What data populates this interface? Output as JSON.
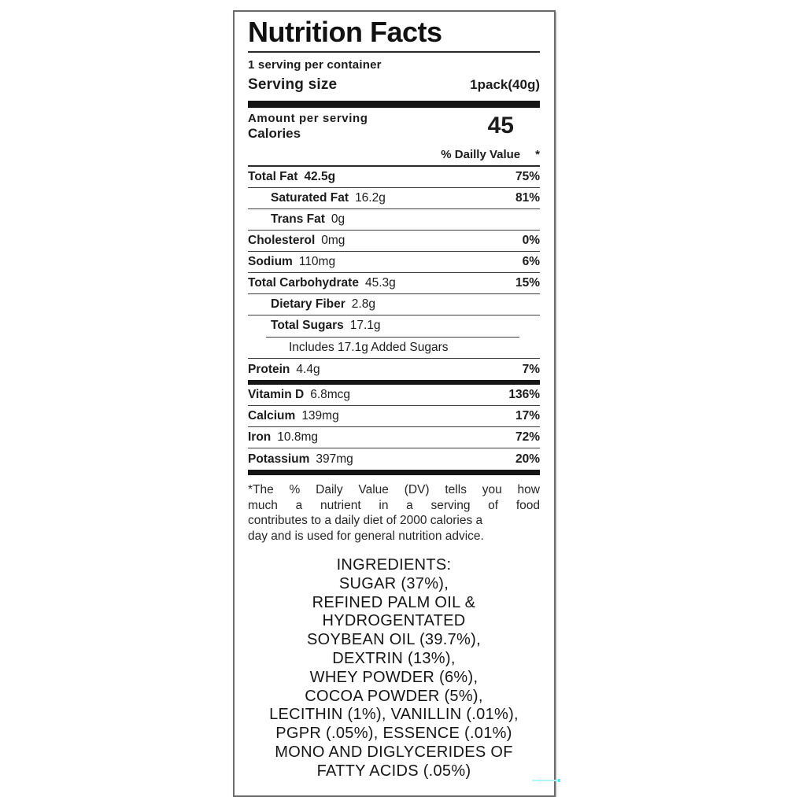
{
  "label": {
    "title": "Nutrition Facts",
    "servings_per_container": "1 serving per container",
    "serving_size_label": "Serving size",
    "serving_size_value": "1pack(40g)",
    "amount_per_serving": "Amount per serving",
    "calories_label": "Calories",
    "calories_value": "45",
    "daily_value_header": "% Dailly Value",
    "daily_value_asterisk": "*",
    "rows": [
      {
        "name": "Total Fat",
        "amount": "42.5g",
        "dv": "75%",
        "indent": 0,
        "amount_bold": true,
        "sep": "thin"
      },
      {
        "name": "Saturated Fat",
        "amount": "16.2g",
        "dv": "81%",
        "indent": 1,
        "sep": "thin"
      },
      {
        "name": "Trans Fat",
        "amount": "0g",
        "dv": "",
        "indent": 1,
        "sep": "thin"
      },
      {
        "name": "Cholesterol",
        "amount": "0mg",
        "dv": "0%",
        "indent": 0,
        "sep": "thin"
      },
      {
        "name": "Sodium",
        "amount": "110mg",
        "dv": "6%",
        "indent": 0,
        "sep": "thin"
      },
      {
        "name": "Total Carbohydrate",
        "amount": "45.3g",
        "dv": "15%",
        "indent": 0,
        "sep": "thin"
      },
      {
        "name": "Dietary Fiber",
        "amount": "2.8g",
        "dv": "",
        "indent": 1,
        "sep": "thin"
      },
      {
        "name": "Total Sugars",
        "amount": "17.1g",
        "dv": "",
        "indent": 1,
        "sep": "short"
      },
      {
        "name": "",
        "amount": "Includes 17.1g Added Sugars",
        "dv": "",
        "indent": 2,
        "sep": "thin"
      },
      {
        "name": "Protein",
        "amount": "4.4g",
        "dv": "7%",
        "indent": 0,
        "sep": "thick"
      },
      {
        "name": "Vitamin D",
        "amount": "6.8mcg",
        "dv": "136%",
        "indent": 0,
        "sep": "thin"
      },
      {
        "name": "Calcium",
        "amount": "139mg",
        "dv": "17%",
        "indent": 0,
        "sep": "thin"
      },
      {
        "name": "Iron",
        "amount": "10.8mg",
        "dv": "72%",
        "indent": 0,
        "sep": "thin"
      },
      {
        "name": "Potassium",
        "amount": "397mg",
        "dv": "20%",
        "indent": 0,
        "sep": "thick-final"
      }
    ],
    "footnote_lines": [
      "*The % Daily Value (DV) tells you how",
      "much a nutrient in a serving of food",
      "contributes to a daily diet of 2000 calories a",
      "day and is used for general nutrition advice."
    ],
    "ingredients_lines": [
      "INGREDIENTS:",
      "SUGAR (37%),",
      "REFINED PALM OIL &",
      "HYDROGENTATED",
      "SOYBEAN OIL (39.7%),",
      "DEXTRIN (13%),",
      "WHEY POWDER (6%),",
      "COCOA POWDER (5%),",
      "LECITHIN (1%), VANILLIN (.01%),",
      "PGPR (.05%), ESSENCE (.01%)",
      "MONO AND DIGLYCERIDES OF",
      "FATTY ACIDS (.05%)"
    ],
    "colors": {
      "text": "#1c1c1c",
      "border": "#6a6a6a",
      "thick_bar": "#151515",
      "artifact_cyan": "#aef4f6"
    }
  }
}
